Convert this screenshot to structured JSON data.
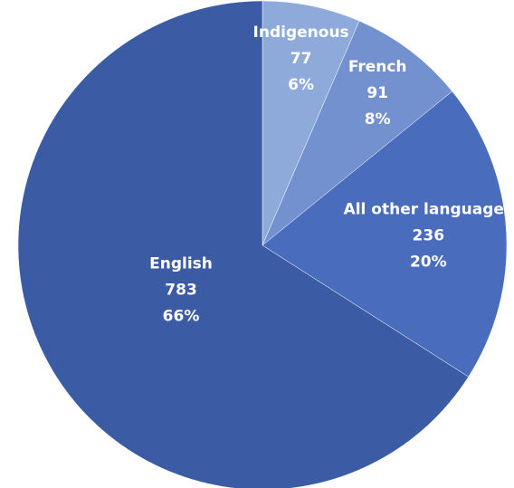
{
  "chart_data": {
    "type": "pie",
    "categories": [
      "Indigenous",
      "French",
      "All other languages",
      "English"
    ],
    "values": [
      77,
      91,
      236,
      783
    ],
    "percent_labels": [
      "6%",
      "8%",
      "20%",
      "66%"
    ],
    "colors": [
      "#8eaadb",
      "#7390cf",
      "#4a6cbd",
      "#3b5ba4"
    ]
  }
}
